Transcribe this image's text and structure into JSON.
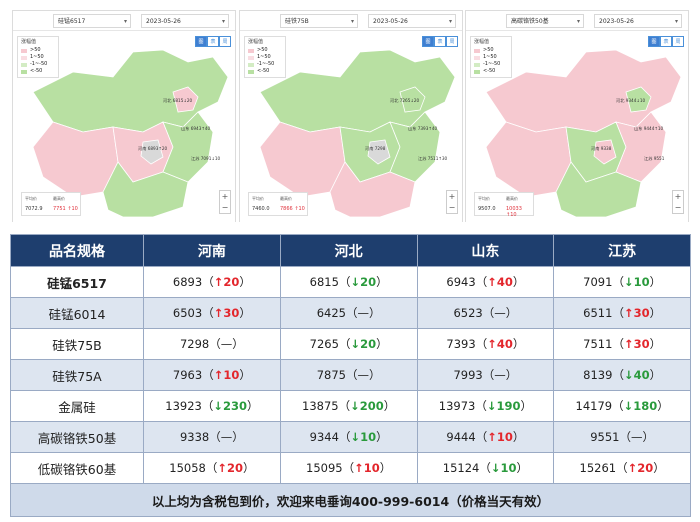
{
  "panels": [
    {
      "product": "硅锰6517",
      "date": "2023-05-26",
      "legend_title": "涨幅值",
      "legend": [
        ">50",
        "1~50",
        "-1~-50",
        "<-50"
      ],
      "view_buttons": [
        "图",
        "表",
        "周"
      ],
      "map_labels": [
        "河南 6893↑20",
        "河北 6815↓20",
        "山东 6943↑40",
        "江苏 7091↓10"
      ],
      "mini_left_label": "平均价",
      "mini_left_value": "7072.9",
      "mini_right_label": "最高价",
      "mini_right_value": "7751 ↑10",
      "mini_bottom_left": "最低价",
      "mini_bottom_right": "6710 ↑10"
    },
    {
      "product": "硅铁75B",
      "date": "2023-05-26",
      "legend_title": "涨幅值",
      "legend": [
        ">50",
        "1~50",
        "-1~-50",
        "<-50"
      ],
      "view_buttons": [
        "图",
        "表",
        "周"
      ],
      "map_labels": [
        "河南 7298",
        "河北 7265↓20",
        "山东 7393↑40",
        "江苏 7511↑30"
      ],
      "mini_left_label": "平均价",
      "mini_left_value": "7460.0",
      "mini_right_label": "最高价",
      "mini_right_value": "7866 ↑10",
      "mini_bottom_left": "最低价",
      "mini_bottom_right": "7140 ↑10"
    },
    {
      "product": "高碳铬铁50基",
      "date": "2023-05-26",
      "legend_title": "涨幅值",
      "legend": [
        ">50",
        "1~50",
        "-1~-50",
        "<-50"
      ],
      "view_buttons": [
        "图",
        "表",
        "周"
      ],
      "map_labels": [
        "河南 9338",
        "河北 9344↓10",
        "山东 9444↑10",
        "江苏 9551"
      ],
      "mini_left_label": "平均价",
      "mini_left_value": "9507.0",
      "mini_right_label": "最高价",
      "mini_right_value": "10033 ↑10",
      "mini_bottom_left": "最低价",
      "mini_bottom_right": "9070 ↑10"
    }
  ],
  "colors": {
    "header_bg": "#1e3e6e",
    "up": "#e3262c",
    "down": "#2a9a3c",
    "map_pink": "#f6c9d0",
    "map_green": "#b8e0a2",
    "map_grey": "#d9d9d9"
  },
  "table": {
    "headers": [
      "品名规格",
      "河南",
      "河北",
      "山东",
      "江苏"
    ],
    "rows": [
      {
        "name": "硅锰6517",
        "bold": true,
        "cells": [
          {
            "price": "6893",
            "dir": "up",
            "chg": "20"
          },
          {
            "price": "6815",
            "dir": "down",
            "chg": "20"
          },
          {
            "price": "6943",
            "dir": "up",
            "chg": "40"
          },
          {
            "price": "7091",
            "dir": "down",
            "chg": "10"
          }
        ]
      },
      {
        "name": "硅锰6014",
        "bold": false,
        "cells": [
          {
            "price": "6503",
            "dir": "up",
            "chg": "30"
          },
          {
            "price": "6425",
            "dir": "flat",
            "chg": "—"
          },
          {
            "price": "6523",
            "dir": "flat",
            "chg": "—"
          },
          {
            "price": "6511",
            "dir": "up",
            "chg": "30"
          }
        ]
      },
      {
        "name": "硅铁75B",
        "bold": false,
        "cells": [
          {
            "price": "7298",
            "dir": "flat",
            "chg": "—"
          },
          {
            "price": "7265",
            "dir": "down",
            "chg": "20"
          },
          {
            "price": "7393",
            "dir": "up",
            "chg": "40"
          },
          {
            "price": "7511",
            "dir": "up",
            "chg": "30"
          }
        ]
      },
      {
        "name": "硅铁75A",
        "bold": false,
        "cells": [
          {
            "price": "7963",
            "dir": "up",
            "chg": "10"
          },
          {
            "price": "7875",
            "dir": "flat",
            "chg": "—"
          },
          {
            "price": "7993",
            "dir": "flat",
            "chg": "—"
          },
          {
            "price": "8139",
            "dir": "down",
            "chg": "40"
          }
        ]
      },
      {
        "name": "金属硅",
        "bold": false,
        "cells": [
          {
            "price": "13923",
            "dir": "down",
            "chg": "230"
          },
          {
            "price": "13875",
            "dir": "down",
            "chg": "200"
          },
          {
            "price": "13973",
            "dir": "down",
            "chg": "190"
          },
          {
            "price": "14179",
            "dir": "down",
            "chg": "180"
          }
        ]
      },
      {
        "name": "高碳铬铁50基",
        "bold": false,
        "cells": [
          {
            "price": "9338",
            "dir": "flat",
            "chg": "—"
          },
          {
            "price": "9344",
            "dir": "down",
            "chg": "10"
          },
          {
            "price": "9444",
            "dir": "up",
            "chg": "10"
          },
          {
            "price": "9551",
            "dir": "flat",
            "chg": "—"
          }
        ]
      },
      {
        "name": "低碳铬铁60基",
        "bold": false,
        "cells": [
          {
            "price": "15058",
            "dir": "up",
            "chg": "20"
          },
          {
            "price": "15095",
            "dir": "up",
            "chg": "10"
          },
          {
            "price": "15124",
            "dir": "down",
            "chg": "10"
          },
          {
            "price": "15261",
            "dir": "up",
            "chg": "20"
          }
        ]
      }
    ],
    "footer": "以上均为含税包到价，欢迎来电垂询400-999-6014（价格当天有效）"
  }
}
